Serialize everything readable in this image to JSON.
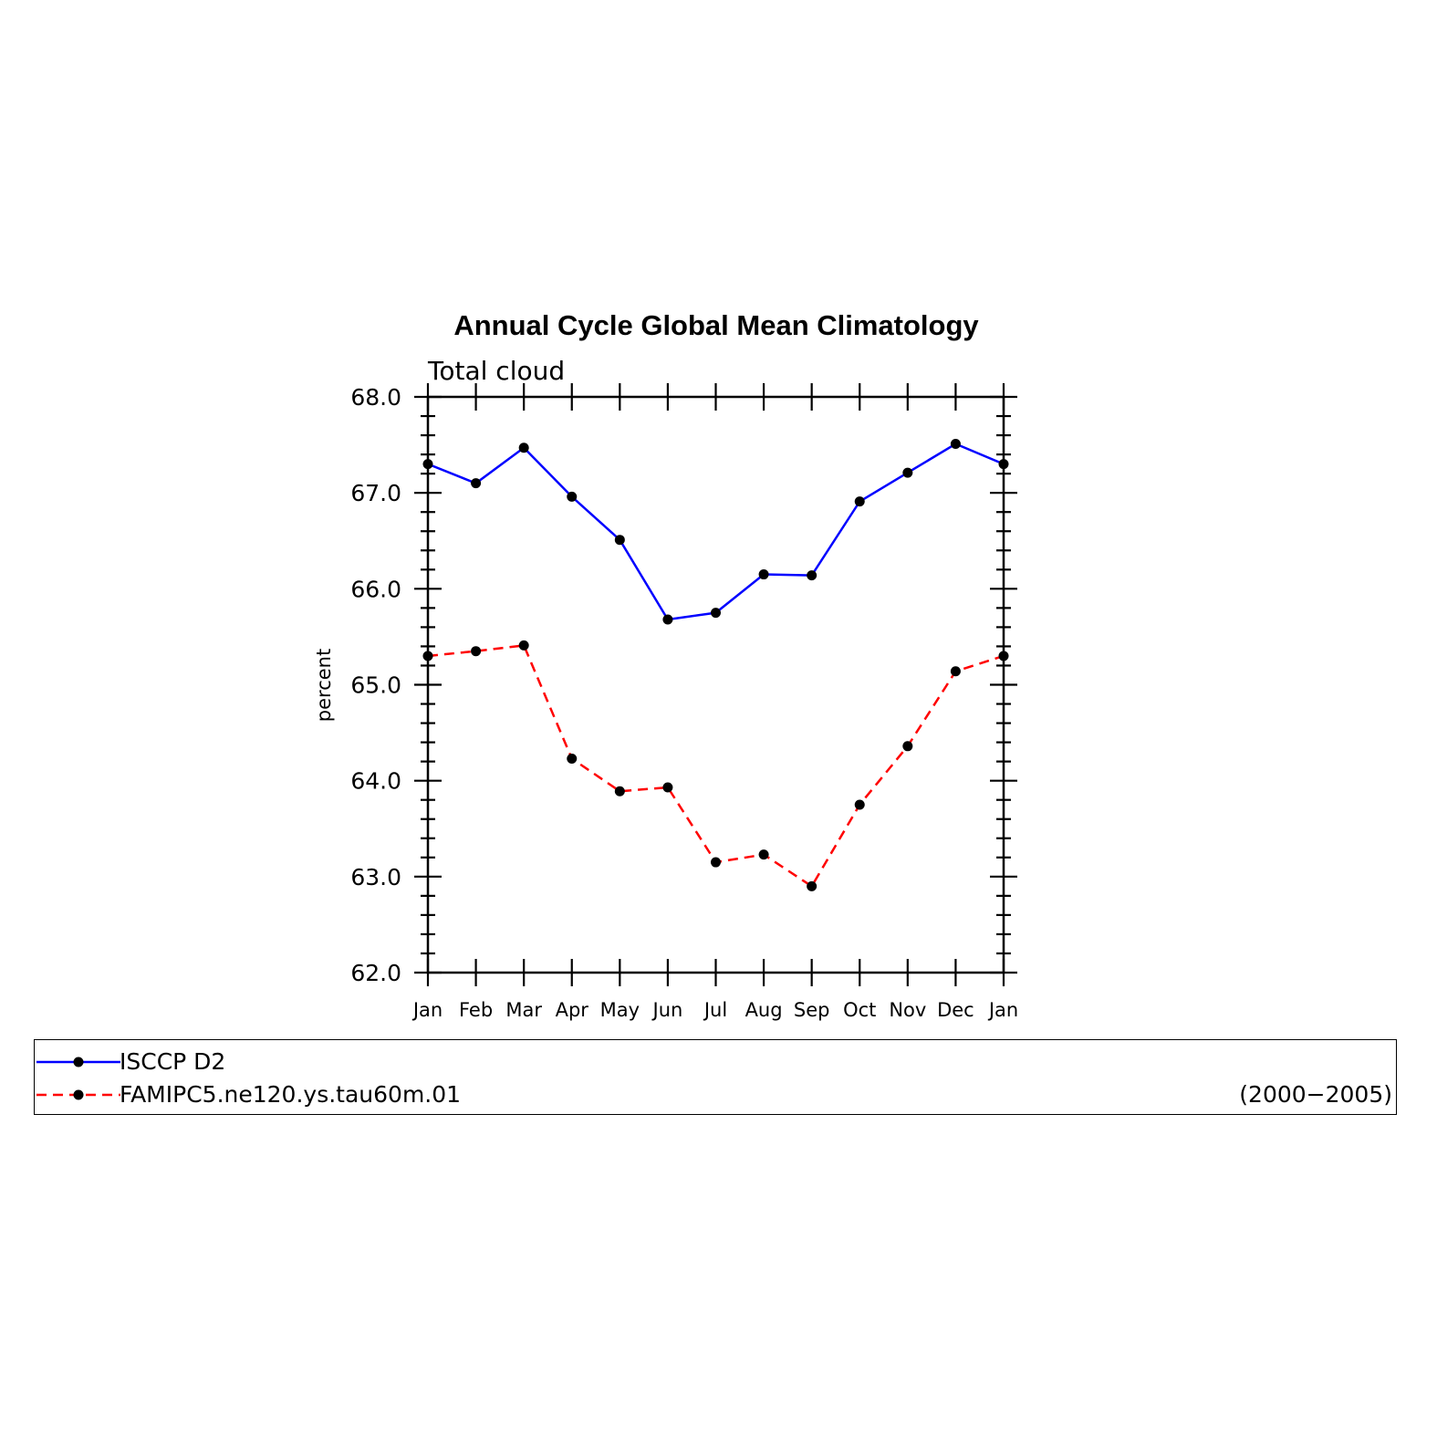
{
  "chart_data": {
    "type": "line",
    "title": "Annual Cycle Global Mean Climatology",
    "subtitle": "Total cloud",
    "xlabel": "",
    "ylabel": "percent",
    "categories": [
      "Jan",
      "Feb",
      "Mar",
      "Apr",
      "May",
      "Jun",
      "Jul",
      "Aug",
      "Sep",
      "Oct",
      "Nov",
      "Dec",
      "Jan"
    ],
    "ylim": [
      62.0,
      68.0
    ],
    "yticks": [
      "62.0",
      "63.0",
      "64.0",
      "65.0",
      "66.0",
      "67.0",
      "68.0"
    ],
    "grid": false,
    "series": [
      {
        "name": "ISCCP D2",
        "color": "#0000ff",
        "dash": "solid",
        "values": [
          67.3,
          67.1,
          67.47,
          66.96,
          66.51,
          65.68,
          65.75,
          66.15,
          66.14,
          66.91,
          67.21,
          67.51,
          67.3
        ]
      },
      {
        "name": "FAMIPC5.ne120.ys.tau60m.01",
        "color": "#ff0000",
        "dash": "dashed",
        "values": [
          65.3,
          65.35,
          65.41,
          64.23,
          63.89,
          63.93,
          63.15,
          63.23,
          62.9,
          63.75,
          64.36,
          65.14,
          65.3
        ]
      }
    ],
    "legend": {
      "placement": "bottom",
      "period": "(2000−2005)"
    }
  }
}
